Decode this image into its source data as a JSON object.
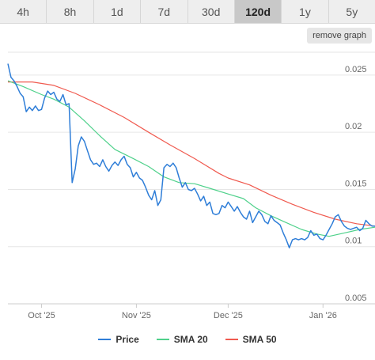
{
  "timeframes": {
    "items": [
      {
        "label": "4h",
        "active": false
      },
      {
        "label": "8h",
        "active": false
      },
      {
        "label": "1d",
        "active": false
      },
      {
        "label": "7d",
        "active": false
      },
      {
        "label": "30d",
        "active": false
      },
      {
        "label": "120d",
        "active": true
      },
      {
        "label": "1y",
        "active": false
      },
      {
        "label": "5y",
        "active": false
      }
    ]
  },
  "controls": {
    "remove_graph_label": "remove graph"
  },
  "legend": {
    "items": [
      {
        "label": "Price",
        "color": "#2f7ed8"
      },
      {
        "label": "SMA 20",
        "color": "#4fd18b"
      },
      {
        "label": "SMA 50",
        "color": "#f05a4f"
      }
    ]
  },
  "chart_data": {
    "type": "line",
    "ylim": [
      0.005,
      0.027
    ],
    "yticks": [
      {
        "value": 0.025,
        "label": "0.025"
      },
      {
        "value": 0.02,
        "label": "0.02"
      },
      {
        "value": 0.015,
        "label": "0.015"
      },
      {
        "value": 0.01,
        "label": "0.01"
      },
      {
        "value": 0.005,
        "label": "0.005"
      }
    ],
    "xlim": [
      "2025-09-20",
      "2026-01-18"
    ],
    "xticks": [
      {
        "date": "2025-10-01",
        "label": "Oct '25"
      },
      {
        "date": "2025-11-01",
        "label": "Nov '25"
      },
      {
        "date": "2025-12-01",
        "label": "Dec '25"
      },
      {
        "date": "2026-01-01",
        "label": "Jan '26"
      }
    ],
    "grid": true,
    "legend_position": "bottom",
    "series": [
      {
        "name": "Price",
        "color": "#2f7ed8",
        "points": [
          [
            "2025-09-20",
            0.026
          ],
          [
            "2025-09-21",
            0.0248
          ],
          [
            "2025-09-22",
            0.0245
          ],
          [
            "2025-09-23",
            0.024
          ],
          [
            "2025-09-24",
            0.0234
          ],
          [
            "2025-09-25",
            0.0231
          ],
          [
            "2025-09-26",
            0.0218
          ],
          [
            "2025-09-27",
            0.0222
          ],
          [
            "2025-09-28",
            0.0219
          ],
          [
            "2025-09-29",
            0.0223
          ],
          [
            "2025-09-30",
            0.0219
          ],
          [
            "2025-10-01",
            0.022
          ],
          [
            "2025-10-02",
            0.023
          ],
          [
            "2025-10-03",
            0.0236
          ],
          [
            "2025-10-04",
            0.0233
          ],
          [
            "2025-10-05",
            0.0235
          ],
          [
            "2025-10-06",
            0.0229
          ],
          [
            "2025-10-07",
            0.0227
          ],
          [
            "2025-10-08",
            0.0233
          ],
          [
            "2025-10-09",
            0.0224
          ],
          [
            "2025-10-10",
            0.0225
          ],
          [
            "2025-10-11",
            0.0156
          ],
          [
            "2025-10-12",
            0.0168
          ],
          [
            "2025-10-13",
            0.0188
          ],
          [
            "2025-10-14",
            0.0196
          ],
          [
            "2025-10-15",
            0.0192
          ],
          [
            "2025-10-16",
            0.0184
          ],
          [
            "2025-10-17",
            0.0176
          ],
          [
            "2025-10-18",
            0.0172
          ],
          [
            "2025-10-19",
            0.0173
          ],
          [
            "2025-10-20",
            0.017
          ],
          [
            "2025-10-21",
            0.0176
          ],
          [
            "2025-10-22",
            0.017
          ],
          [
            "2025-10-23",
            0.0166
          ],
          [
            "2025-10-24",
            0.0171
          ],
          [
            "2025-10-25",
            0.0174
          ],
          [
            "2025-10-26",
            0.0171
          ],
          [
            "2025-10-27",
            0.0176
          ],
          [
            "2025-10-28",
            0.0179
          ],
          [
            "2025-10-29",
            0.0172
          ],
          [
            "2025-10-30",
            0.0169
          ],
          [
            "2025-10-31",
            0.0161
          ],
          [
            "2025-11-01",
            0.0165
          ],
          [
            "2025-11-02",
            0.016
          ],
          [
            "2025-11-03",
            0.0158
          ],
          [
            "2025-11-04",
            0.0152
          ],
          [
            "2025-11-05",
            0.0145
          ],
          [
            "2025-11-06",
            0.0141
          ],
          [
            "2025-11-07",
            0.0149
          ],
          [
            "2025-11-08",
            0.0136
          ],
          [
            "2025-11-09",
            0.0141
          ],
          [
            "2025-11-10",
            0.0169
          ],
          [
            "2025-11-11",
            0.0172
          ],
          [
            "2025-11-12",
            0.017
          ],
          [
            "2025-11-13",
            0.0173
          ],
          [
            "2025-11-14",
            0.0169
          ],
          [
            "2025-11-15",
            0.016
          ],
          [
            "2025-11-16",
            0.0152
          ],
          [
            "2025-11-17",
            0.0156
          ],
          [
            "2025-11-18",
            0.015
          ],
          [
            "2025-11-19",
            0.0149
          ],
          [
            "2025-11-20",
            0.0151
          ],
          [
            "2025-11-21",
            0.0146
          ],
          [
            "2025-11-22",
            0.014
          ],
          [
            "2025-11-23",
            0.0144
          ],
          [
            "2025-11-24",
            0.0136
          ],
          [
            "2025-11-25",
            0.0139
          ],
          [
            "2025-11-26",
            0.0129
          ],
          [
            "2025-11-27",
            0.0128
          ],
          [
            "2025-11-28",
            0.0129
          ],
          [
            "2025-11-29",
            0.0136
          ],
          [
            "2025-11-30",
            0.0134
          ],
          [
            "2025-12-01",
            0.0139
          ],
          [
            "2025-12-02",
            0.0135
          ],
          [
            "2025-12-03",
            0.0131
          ],
          [
            "2025-12-04",
            0.0135
          ],
          [
            "2025-12-05",
            0.013
          ],
          [
            "2025-12-06",
            0.0126
          ],
          [
            "2025-12-07",
            0.0124
          ],
          [
            "2025-12-08",
            0.0131
          ],
          [
            "2025-12-09",
            0.0121
          ],
          [
            "2025-12-10",
            0.0126
          ],
          [
            "2025-12-11",
            0.0131
          ],
          [
            "2025-12-12",
            0.0128
          ],
          [
            "2025-12-13",
            0.0122
          ],
          [
            "2025-12-14",
            0.012
          ],
          [
            "2025-12-15",
            0.0127
          ],
          [
            "2025-12-16",
            0.0123
          ],
          [
            "2025-12-17",
            0.0121
          ],
          [
            "2025-12-18",
            0.0119
          ],
          [
            "2025-12-19",
            0.0112
          ],
          [
            "2025-12-20",
            0.0106
          ],
          [
            "2025-12-21",
            0.0099
          ],
          [
            "2025-12-22",
            0.0106
          ],
          [
            "2025-12-23",
            0.0107
          ],
          [
            "2025-12-24",
            0.0106
          ],
          [
            "2025-12-25",
            0.0107
          ],
          [
            "2025-12-26",
            0.0106
          ],
          [
            "2025-12-27",
            0.0108
          ],
          [
            "2025-12-28",
            0.0114
          ],
          [
            "2025-12-29",
            0.011
          ],
          [
            "2025-12-30",
            0.0111
          ],
          [
            "2025-12-31",
            0.0107
          ],
          [
            "2026-01-01",
            0.0106
          ],
          [
            "2026-01-02",
            0.011
          ],
          [
            "2026-01-03",
            0.0115
          ],
          [
            "2026-01-04",
            0.012
          ],
          [
            "2026-01-05",
            0.0126
          ],
          [
            "2026-01-06",
            0.0128
          ],
          [
            "2026-01-07",
            0.0122
          ],
          [
            "2026-01-08",
            0.0118
          ],
          [
            "2026-01-09",
            0.0116
          ],
          [
            "2026-01-10",
            0.0115
          ],
          [
            "2026-01-11",
            0.0116
          ],
          [
            "2026-01-12",
            0.0117
          ],
          [
            "2026-01-13",
            0.0114
          ],
          [
            "2026-01-14",
            0.0116
          ],
          [
            "2026-01-15",
            0.0123
          ],
          [
            "2026-01-16",
            0.012
          ],
          [
            "2026-01-17",
            0.0118
          ],
          [
            "2026-01-18",
            0.0118
          ]
        ]
      },
      {
        "name": "SMA 20",
        "color": "#4fd18b",
        "points": [
          [
            "2025-09-20",
            0.0245
          ],
          [
            "2025-09-25",
            0.024
          ],
          [
            "2025-10-01",
            0.0233
          ],
          [
            "2025-10-05",
            0.0229
          ],
          [
            "2025-10-10",
            0.0222
          ],
          [
            "2025-10-15",
            0.021
          ],
          [
            "2025-10-20",
            0.0197
          ],
          [
            "2025-10-25",
            0.0185
          ],
          [
            "2025-10-31",
            0.0177
          ],
          [
            "2025-11-05",
            0.017
          ],
          [
            "2025-11-10",
            0.0161
          ],
          [
            "2025-11-15",
            0.0156
          ],
          [
            "2025-11-20",
            0.0155
          ],
          [
            "2025-11-25",
            0.0151
          ],
          [
            "2025-12-01",
            0.0146
          ],
          [
            "2025-12-06",
            0.0142
          ],
          [
            "2025-12-10",
            0.0134
          ],
          [
            "2025-12-15",
            0.0127
          ],
          [
            "2025-12-20",
            0.0121
          ],
          [
            "2025-12-25",
            0.0115
          ],
          [
            "2025-12-30",
            0.0111
          ],
          [
            "2026-01-03",
            0.0109
          ],
          [
            "2026-01-08",
            0.0112
          ],
          [
            "2026-01-13",
            0.0115
          ],
          [
            "2026-01-18",
            0.0117
          ]
        ]
      },
      {
        "name": "SMA 50",
        "color": "#f05a4f",
        "points": [
          [
            "2025-09-20",
            0.0244
          ],
          [
            "2025-09-28",
            0.0244
          ],
          [
            "2025-10-05",
            0.0241
          ],
          [
            "2025-10-12",
            0.0234
          ],
          [
            "2025-10-20",
            0.0224
          ],
          [
            "2025-10-28",
            0.0213
          ],
          [
            "2025-11-05",
            0.02
          ],
          [
            "2025-11-12",
            0.0189
          ],
          [
            "2025-11-20",
            0.0177
          ],
          [
            "2025-11-28",
            0.0164
          ],
          [
            "2025-12-01",
            0.016
          ],
          [
            "2025-12-08",
            0.0154
          ],
          [
            "2025-12-15",
            0.0145
          ],
          [
            "2025-12-22",
            0.0137
          ],
          [
            "2025-12-29",
            0.013
          ],
          [
            "2026-01-05",
            0.0124
          ],
          [
            "2026-01-12",
            0.012
          ],
          [
            "2026-01-18",
            0.0118
          ]
        ]
      }
    ]
  }
}
